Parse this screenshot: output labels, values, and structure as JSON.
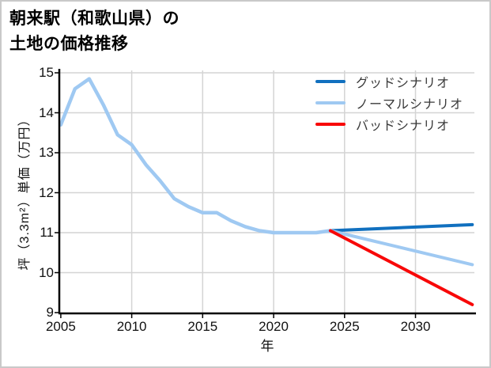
{
  "page": {
    "title_line1": "朝来駅（和歌山県）の",
    "title_line2": "土地の価格推移"
  },
  "chart_data": {
    "type": "line",
    "title": "朝来駅（和歌山県）の土地の価格推移",
    "xlabel": "年",
    "ylabel": "坪（3.3m²）単価（万円）",
    "xlim": [
      2004.95,
      2034.15
    ],
    "ylim": [
      9,
      15.06
    ],
    "xticks": [
      2005,
      2010,
      2015,
      2020,
      2025,
      2030
    ],
    "yticks": [
      9,
      10,
      11,
      12,
      13,
      14,
      15
    ],
    "grid": true,
    "grid_color": "#d4d4d4",
    "axis_color": "#000000",
    "legend_position": "upper right",
    "series": [
      {
        "id": "historical",
        "in_legend": false,
        "color": "#9fc9f2",
        "line_width": 4.5,
        "x": [
          2005,
          2006,
          2007,
          2008,
          2009,
          2010,
          2011,
          2012,
          2013,
          2014,
          2015,
          2016,
          2017,
          2018,
          2019,
          2020,
          2021,
          2022,
          2023,
          2024
        ],
        "y": [
          13.7,
          14.6,
          14.85,
          14.2,
          13.45,
          13.2,
          12.7,
          12.3,
          11.85,
          11.65,
          11.5,
          11.5,
          11.3,
          11.15,
          11.05,
          11.0,
          11.0,
          11.0,
          11.0,
          11.05
        ]
      },
      {
        "id": "good-scenario",
        "name": "グッドシナリオ",
        "in_legend": true,
        "color": "#1170bf",
        "line_width": 4,
        "x": [
          2024,
          2034
        ],
        "y": [
          11.05,
          11.2
        ]
      },
      {
        "id": "normal-scenario",
        "name": "ノーマルシナリオ",
        "in_legend": true,
        "color": "#9fc9f2",
        "line_width": 4,
        "x": [
          2024,
          2034
        ],
        "y": [
          11.05,
          10.2
        ]
      },
      {
        "id": "bad-scenario",
        "name": "バッドシナリオ",
        "in_legend": true,
        "color": "#f80808",
        "line_width": 4,
        "x": [
          2024,
          2034
        ],
        "y": [
          11.05,
          9.2
        ]
      }
    ]
  }
}
